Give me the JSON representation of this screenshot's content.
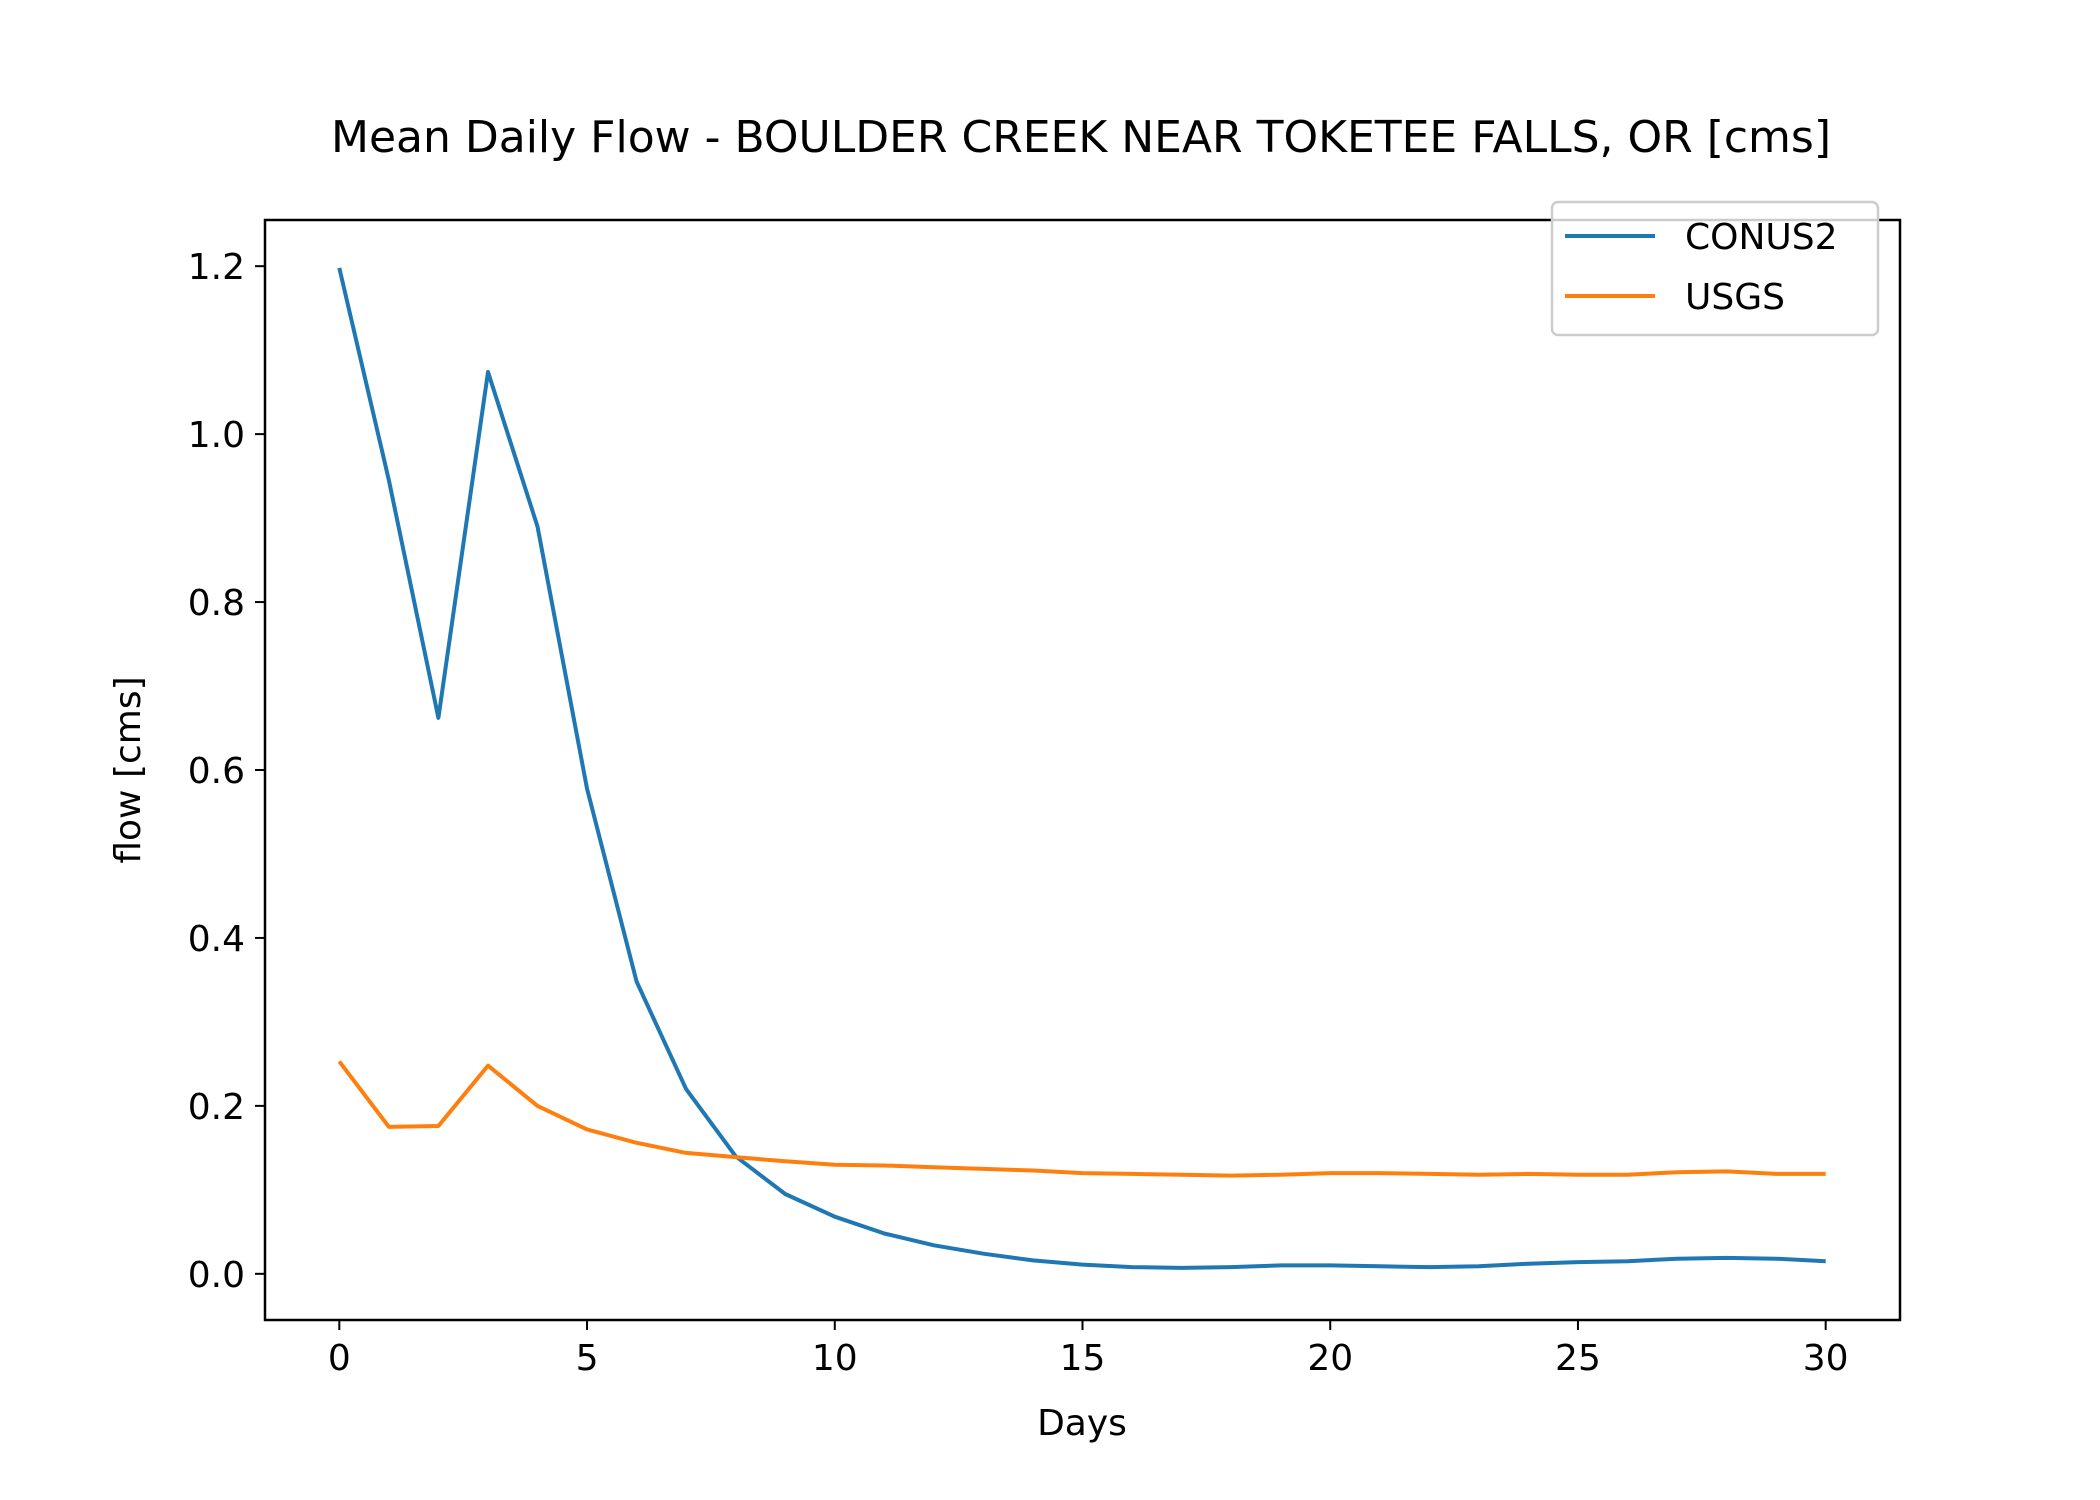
{
  "chart_data": {
    "type": "line",
    "title": "Mean Daily Flow - BOULDER CREEK NEAR TOKETEE FALLS, OR [cms]",
    "xlabel": "Days",
    "ylabel": "flow [cms]",
    "xlim": [
      -1.5,
      31.5
    ],
    "ylim": [
      -0.055,
      1.255
    ],
    "xticks": [
      0,
      5,
      10,
      15,
      20,
      25,
      30
    ],
    "xtick_labels": [
      "0",
      "5",
      "10",
      "15",
      "20",
      "25",
      "30"
    ],
    "yticks": [
      0.0,
      0.2,
      0.4,
      0.6,
      0.8,
      1.0,
      1.2
    ],
    "ytick_labels": [
      "0.0",
      "0.2",
      "0.4",
      "0.6",
      "0.8",
      "1.0",
      "1.2"
    ],
    "grid": false,
    "legend_position": "top-right",
    "x": [
      0,
      1,
      2,
      3,
      4,
      5,
      6,
      7,
      8,
      9,
      10,
      11,
      12,
      13,
      14,
      15,
      16,
      17,
      18,
      19,
      20,
      21,
      22,
      23,
      24,
      25,
      26,
      27,
      28,
      29,
      30
    ],
    "series": [
      {
        "name": "CONUS2",
        "color": "#1f77b4",
        "values": [
          1.198,
          0.945,
          0.662,
          1.074,
          0.89,
          0.578,
          0.348,
          0.22,
          0.14,
          0.095,
          0.068,
          0.048,
          0.034,
          0.024,
          0.016,
          0.011,
          0.008,
          0.007,
          0.008,
          0.01,
          0.01,
          0.009,
          0.008,
          0.009,
          0.012,
          0.014,
          0.015,
          0.018,
          0.019,
          0.018,
          0.015
        ]
      },
      {
        "name": "USGS",
        "color": "#ff7f0e",
        "values": [
          0.253,
          0.175,
          0.176,
          0.248,
          0.2,
          0.172,
          0.156,
          0.144,
          0.139,
          0.134,
          0.13,
          0.129,
          0.127,
          0.125,
          0.123,
          0.12,
          0.119,
          0.118,
          0.117,
          0.118,
          0.12,
          0.12,
          0.119,
          0.118,
          0.119,
          0.118,
          0.118,
          0.121,
          0.122,
          0.119,
          0.119
        ]
      }
    ]
  }
}
